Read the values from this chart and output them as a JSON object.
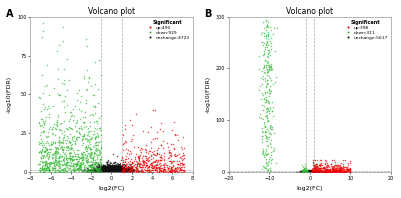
{
  "panel_A": {
    "title": "Volcano plot",
    "xlabel": "log2(FC)",
    "ylabel": "-log10(FDR)",
    "xlim": [
      -8,
      8
    ],
    "ylim": [
      0,
      100
    ],
    "yticks": [
      0,
      25,
      50,
      75,
      100
    ],
    "xticks": [
      -8,
      -6,
      -4,
      -2,
      0,
      2,
      4,
      6,
      8
    ],
    "vlines": [
      -1,
      1
    ],
    "hline": 1.3,
    "legend_title": "Significant",
    "legend_entries": [
      "up:490",
      "down:929",
      "unchange:4723"
    ],
    "legend_colors": [
      "#ee0000",
      "#33bb33",
      "#111111"
    ],
    "n_up": 490,
    "n_down": 929,
    "n_unchanged": 4723,
    "label": "A"
  },
  "panel_B": {
    "title": "Volcano plot",
    "xlabel": "log2(FC)",
    "ylabel": "-log10(FDR)",
    "xlim": [
      -20,
      20
    ],
    "ylim": [
      0,
      300
    ],
    "yticks": [
      0,
      100,
      200,
      300
    ],
    "xticks": [
      -20,
      -10,
      0,
      10,
      20
    ],
    "vlines": [
      -1,
      1
    ],
    "hline": 1.3,
    "legend_title": "Significant",
    "legend_entries": [
      "up:398",
      "down:311",
      "unchange:5617"
    ],
    "legend_colors": [
      "#ee0000",
      "#33bb33",
      "#111111"
    ],
    "n_up": 398,
    "n_down": 311,
    "n_unchanged": 5617,
    "label": "B"
  },
  "bg_color": "#ffffff",
  "point_size": 1.2,
  "alpha": 0.7
}
